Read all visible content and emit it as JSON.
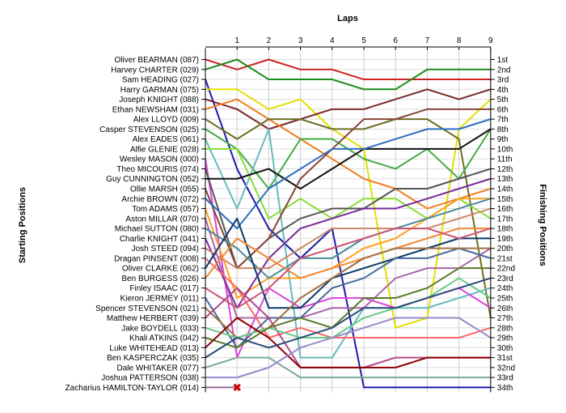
{
  "chart_data": {
    "type": "line",
    "title": "Laps",
    "ylabel_left": "Starting Positions",
    "ylabel_right": "Finishing Positions",
    "laps": [
      1,
      2,
      3,
      4,
      5,
      6,
      7,
      8,
      9
    ],
    "finishing_labels": [
      "1st",
      "2nd",
      "3rd",
      "4th",
      "5th",
      "6th",
      "7th",
      "8th",
      "9th",
      "10th",
      "11th",
      "12th",
      "13th",
      "14th",
      "15th",
      "16th",
      "17th",
      "18th",
      "19th",
      "20th",
      "21st",
      "22nd",
      "23rd",
      "24th",
      "25th",
      "26th",
      "27th",
      "28th",
      "29th",
      "30th",
      "31st",
      "32nd",
      "33rd",
      "34th"
    ],
    "retired_marker": "✖",
    "series": [
      {
        "name": "Oliver BEARMAN (087)",
        "color": "#cc2222",
        "positions": [
          1,
          2,
          1,
          2,
          2,
          3,
          3,
          3,
          3,
          3
        ]
      },
      {
        "name": "Harvey CHARTER (029)",
        "color": "#1a8c1a",
        "positions": [
          2,
          1,
          3,
          3,
          3,
          4,
          4,
          2,
          2,
          2
        ]
      },
      {
        "name": "Sam HEADING (027)",
        "color": "#1a1aaa",
        "positions": [
          3,
          12,
          18,
          21,
          18,
          34,
          34,
          34,
          34,
          34
        ]
      },
      {
        "name": "Harry GARMAN (075)",
        "color": "#e0e000",
        "positions": [
          4,
          4,
          6,
          5,
          8,
          10,
          28,
          27,
          8,
          5
        ]
      },
      {
        "name": "Joseph KNIGHT (088)",
        "color": "#7a2828",
        "positions": [
          5,
          6,
          8,
          7,
          6,
          6,
          5,
          4,
          5,
          4
        ]
      },
      {
        "name": "Ethan NEWSHAM (031)",
        "color": "#f07e20",
        "positions": [
          6,
          5,
          7,
          9,
          11,
          13,
          14,
          16,
          15,
          14
        ]
      },
      {
        "name": "Alex LLOYD (009)",
        "color": "#6e6e24",
        "positions": [
          7,
          9,
          7,
          7,
          8,
          8,
          7,
          7,
          9,
          27
        ]
      },
      {
        "name": "Casper STEVENSON (025)",
        "color": "#44aa44",
        "positions": [
          8,
          10,
          14,
          9,
          9,
          11,
          12,
          10,
          13,
          8
        ]
      },
      {
        "name": "Alex EADES (061)",
        "color": "#66bbbb",
        "positions": [
          9,
          16,
          8,
          31,
          31,
          26,
          26,
          26,
          25,
          24
        ]
      },
      {
        "name": "Alfie GLENIE (028)",
        "color": "#88dd33",
        "positions": [
          10,
          10,
          17,
          15,
          17,
          15,
          15,
          17,
          15,
          17
        ]
      },
      {
        "name": "Wesley MASON (000)",
        "color": "#dd44dd",
        "positions": [
          11,
          31,
          24,
          26,
          25,
          25,
          26,
          25,
          24,
          26
        ]
      },
      {
        "name": "Theo MICOURIS (074)",
        "color": "#555555",
        "positions": [
          12,
          22,
          19,
          17,
          16,
          16,
          14,
          14,
          13,
          12
        ]
      },
      {
        "name": "Guy CUNNINGTON (052)",
        "color": "#111111",
        "positions": [
          13,
          13,
          12,
          14,
          12,
          10,
          10,
          10,
          10,
          8
        ]
      },
      {
        "name": "Ollie MARSH (055)",
        "color": "#88443a",
        "positions": [
          14,
          22,
          19,
          13,
          10,
          7,
          7,
          6,
          6,
          6
        ]
      },
      {
        "name": "Archie BROWN (072)",
        "color": "#2f6fbf",
        "positions": [
          15,
          18,
          14,
          12,
          10,
          10,
          9,
          8,
          8,
          7
        ]
      },
      {
        "name": "Tom ADAMS (057)",
        "color": "#ffa020",
        "positions": [
          16,
          25,
          23,
          23,
          22,
          20,
          19,
          17,
          15,
          15
        ]
      },
      {
        "name": "Aston MILLAR (070)",
        "color": "#aa66aa",
        "positions": [
          17,
          27,
          27,
          27,
          26,
          26,
          23,
          22,
          22,
          20
        ]
      },
      {
        "name": "Michael SUTTON (080)",
        "color": "#4a8a9a",
        "positions": [
          18,
          20,
          23,
          21,
          21,
          19,
          18,
          17,
          16,
          15
        ]
      },
      {
        "name": "Charlie KNIGHT (041)",
        "color": "#7a2a9a",
        "positions": [
          19,
          26,
          21,
          18,
          17,
          16,
          16,
          15,
          14,
          13
        ]
      },
      {
        "name": "Josh STEED (094)",
        "color": "#cc8866",
        "positions": [
          20,
          22,
          22,
          20,
          18,
          18,
          18,
          18,
          17,
          16
        ]
      },
      {
        "name": "Dragan PINSENT (008)",
        "color": "#ff6666",
        "positions": [
          21,
          24,
          29,
          28,
          29,
          29,
          29,
          29,
          29,
          28
        ]
      },
      {
        "name": "Oliver CLARKE (062)",
        "color": "#0a3a6a",
        "positions": [
          22,
          17,
          26,
          26,
          23,
          22,
          21,
          20,
          19,
          19
        ]
      },
      {
        "name": "Ben BURGESS (026)",
        "color": "#ee8833",
        "positions": [
          23,
          19,
          21,
          23,
          22,
          21,
          20,
          19,
          18,
          18
        ]
      },
      {
        "name": "Finley ISAAC (017)",
        "color": "#cc5577",
        "positions": [
          24,
          26,
          24,
          21,
          20,
          19,
          18,
          18,
          19,
          18
        ]
      },
      {
        "name": "Kieron JERMEY (011)",
        "color": "#4a6a9a",
        "positions": [
          25,
          30,
          27,
          27,
          24,
          23,
          21,
          21,
          20,
          21
        ]
      },
      {
        "name": "Spencer STEVENSON (021)",
        "color": "#a07040",
        "positions": [
          26,
          29,
          28,
          25,
          23,
          21,
          20,
          20,
          20,
          20
        ]
      },
      {
        "name": "Matthew HERBERT (039)",
        "color": "#b04a8a",
        "positions": [
          27,
          24,
          27,
          32,
          32,
          32,
          31,
          31,
          31,
          31
        ]
      },
      {
        "name": "Jake BOYDELL (033)",
        "color": "#66cc88",
        "positions": [
          28,
          29,
          28,
          29,
          29,
          27,
          26,
          25,
          23,
          25
        ]
      },
      {
        "name": "Khali ATKINS (042)",
        "color": "#5a7a2a",
        "positions": [
          29,
          30,
          28,
          27,
          28,
          25,
          25,
          24,
          22,
          22
        ]
      },
      {
        "name": "Luke WHITEHEAD (013)",
        "color": "#8b0000",
        "positions": [
          30,
          27,
          29,
          32,
          32,
          32,
          32,
          31,
          31,
          31
        ]
      },
      {
        "name": "Ben KASPERCZAK (035)",
        "color": "#2a4a7a",
        "positions": [
          31,
          29,
          30,
          29,
          28,
          26,
          26,
          25,
          24,
          23
        ]
      },
      {
        "name": "Dale WHITAKER (077)",
        "color": "#7aaa9a",
        "positions": [
          32,
          31,
          31,
          33,
          33,
          33,
          33,
          33,
          33,
          33
        ]
      },
      {
        "name": "Joshua PATTERSON (038)",
        "color": "#9988cc",
        "positions": [
          33,
          33,
          32,
          30,
          29,
          28,
          27,
          27,
          27,
          29
        ]
      },
      {
        "name": "Zacharius HAMILTON-TAYLOR (014)",
        "color": "#9a6a9a",
        "positions": [
          34,
          34
        ]
      }
    ]
  }
}
